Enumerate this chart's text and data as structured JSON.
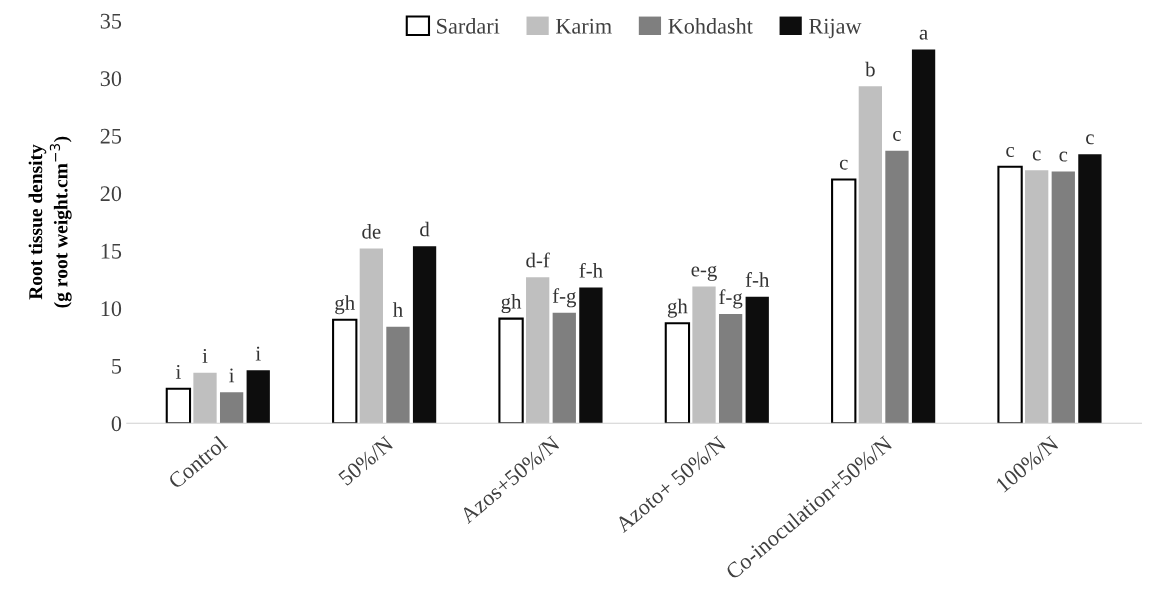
{
  "chart_data": {
    "type": "bar",
    "ylabel": "Root tissue density\n(g root weight.cm$^{−3}$)",
    "categories": [
      "Control",
      "50%/N",
      "Azos+50%/N",
      "Azoto+ 50%/N",
      "Co-inoculation+50%/N",
      "100%/N"
    ],
    "series": [
      {
        "name": "Sardari",
        "color": "#ffffff",
        "values": [
          3.0,
          9.0,
          9.1,
          8.7,
          21.2,
          22.3
        ],
        "value_labels": [
          "i",
          "gh",
          "gh",
          "gh",
          "c",
          "c"
        ]
      },
      {
        "name": "Karim",
        "color": "#bfbfbf",
        "values": [
          4.4,
          15.2,
          12.7,
          11.9,
          29.3,
          22.0
        ],
        "value_labels": [
          "i",
          "de",
          "d-f",
          "e-g",
          "b",
          "c"
        ]
      },
      {
        "name": "Kohdasht",
        "color": "#7f7f7f",
        "values": [
          2.7,
          8.4,
          9.6,
          9.5,
          23.7,
          21.9
        ],
        "value_labels": [
          "i",
          "h",
          "f-g",
          "f-g",
          "c",
          "c"
        ]
      },
      {
        "name": "Rijaw",
        "color": "#0d0d0d",
        "values": [
          4.6,
          15.4,
          11.8,
          11.0,
          32.5,
          23.4
        ],
        "value_labels": [
          "i",
          "d",
          "f-h",
          "f-h",
          "a",
          "c"
        ]
      }
    ],
    "ylim": [
      0,
      35
    ],
    "yticks": [
      0,
      5,
      10,
      15,
      20,
      25,
      30,
      35
    ],
    "grid": false,
    "legend": "top"
  }
}
